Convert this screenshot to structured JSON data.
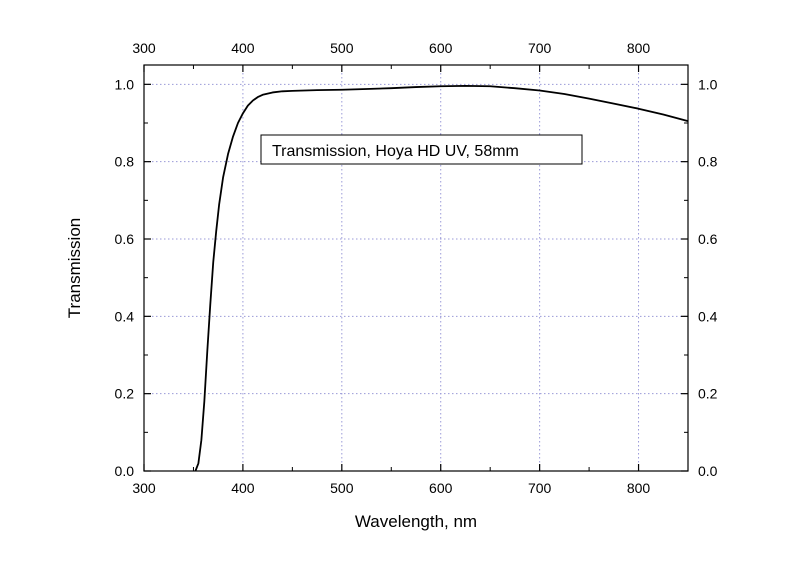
{
  "chart_data": {
    "type": "line",
    "title": "",
    "xlabel": "Wavelength, nm",
    "ylabel": "Transmission",
    "xlim": [
      300,
      850
    ],
    "ylim": [
      0.0,
      1.05
    ],
    "x_ticks": [
      300,
      400,
      500,
      600,
      700,
      800
    ],
    "x_tick_labels": [
      "300",
      "400",
      "500",
      "600",
      "700",
      "800"
    ],
    "y_ticks": [
      0.0,
      0.2,
      0.4,
      0.6,
      0.8,
      1.0
    ],
    "y_tick_labels": [
      "0.0",
      "0.2",
      "0.4",
      "0.6",
      "0.8",
      "1.0"
    ],
    "grid": true,
    "legend_position": "top-center",
    "series": [
      {
        "name": "Transmission, Hoya HD UV, 58mm",
        "color": "#000000",
        "x": [
          352,
          355,
          358,
          361,
          364,
          367,
          370,
          373,
          376,
          380,
          385,
          390,
          395,
          400,
          405,
          410,
          415,
          420,
          430,
          440,
          450,
          475,
          500,
          525,
          550,
          575,
          600,
          625,
          650,
          675,
          700,
          725,
          750,
          775,
          800,
          825,
          850
        ],
        "y": [
          0.0,
          0.02,
          0.08,
          0.18,
          0.31,
          0.43,
          0.54,
          0.62,
          0.69,
          0.76,
          0.82,
          0.865,
          0.9,
          0.925,
          0.945,
          0.958,
          0.967,
          0.973,
          0.979,
          0.982,
          0.983,
          0.985,
          0.986,
          0.988,
          0.99,
          0.993,
          0.995,
          0.996,
          0.995,
          0.99,
          0.984,
          0.975,
          0.963,
          0.95,
          0.937,
          0.922,
          0.905
        ]
      }
    ]
  }
}
